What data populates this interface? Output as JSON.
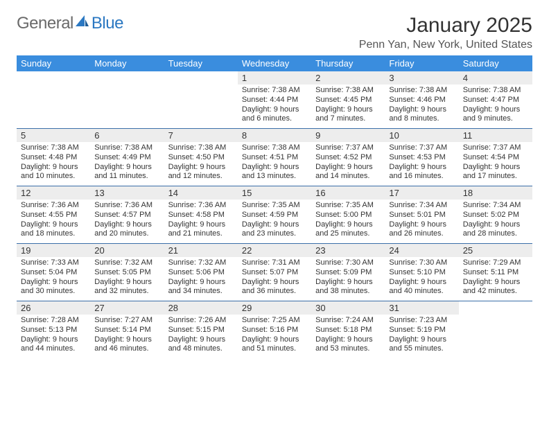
{
  "logo": {
    "text1": "General",
    "text2": "Blue"
  },
  "title": "January 2025",
  "subtitle": "Penn Yan, New York, United States",
  "colors": {
    "header_bg": "#3a8dde",
    "header_text": "#ffffff",
    "week_border": "#3a6ea8",
    "daynum_bg": "#ededed",
    "logo_gray": "#6a6a6a",
    "logo_blue": "#2b78c2",
    "page_bg": "#ffffff",
    "text": "#333333"
  },
  "columns": [
    "Sunday",
    "Monday",
    "Tuesday",
    "Wednesday",
    "Thursday",
    "Friday",
    "Saturday"
  ],
  "weeks": [
    [
      null,
      null,
      null,
      {
        "n": "1",
        "sr": "7:38 AM",
        "ss": "4:44 PM",
        "dl": "9 hours and 6 minutes."
      },
      {
        "n": "2",
        "sr": "7:38 AM",
        "ss": "4:45 PM",
        "dl": "9 hours and 7 minutes."
      },
      {
        "n": "3",
        "sr": "7:38 AM",
        "ss": "4:46 PM",
        "dl": "9 hours and 8 minutes."
      },
      {
        "n": "4",
        "sr": "7:38 AM",
        "ss": "4:47 PM",
        "dl": "9 hours and 9 minutes."
      }
    ],
    [
      {
        "n": "5",
        "sr": "7:38 AM",
        "ss": "4:48 PM",
        "dl": "9 hours and 10 minutes."
      },
      {
        "n": "6",
        "sr": "7:38 AM",
        "ss": "4:49 PM",
        "dl": "9 hours and 11 minutes."
      },
      {
        "n": "7",
        "sr": "7:38 AM",
        "ss": "4:50 PM",
        "dl": "9 hours and 12 minutes."
      },
      {
        "n": "8",
        "sr": "7:38 AM",
        "ss": "4:51 PM",
        "dl": "9 hours and 13 minutes."
      },
      {
        "n": "9",
        "sr": "7:37 AM",
        "ss": "4:52 PM",
        "dl": "9 hours and 14 minutes."
      },
      {
        "n": "10",
        "sr": "7:37 AM",
        "ss": "4:53 PM",
        "dl": "9 hours and 16 minutes."
      },
      {
        "n": "11",
        "sr": "7:37 AM",
        "ss": "4:54 PM",
        "dl": "9 hours and 17 minutes."
      }
    ],
    [
      {
        "n": "12",
        "sr": "7:36 AM",
        "ss": "4:55 PM",
        "dl": "9 hours and 18 minutes."
      },
      {
        "n": "13",
        "sr": "7:36 AM",
        "ss": "4:57 PM",
        "dl": "9 hours and 20 minutes."
      },
      {
        "n": "14",
        "sr": "7:36 AM",
        "ss": "4:58 PM",
        "dl": "9 hours and 21 minutes."
      },
      {
        "n": "15",
        "sr": "7:35 AM",
        "ss": "4:59 PM",
        "dl": "9 hours and 23 minutes."
      },
      {
        "n": "16",
        "sr": "7:35 AM",
        "ss": "5:00 PM",
        "dl": "9 hours and 25 minutes."
      },
      {
        "n": "17",
        "sr": "7:34 AM",
        "ss": "5:01 PM",
        "dl": "9 hours and 26 minutes."
      },
      {
        "n": "18",
        "sr": "7:34 AM",
        "ss": "5:02 PM",
        "dl": "9 hours and 28 minutes."
      }
    ],
    [
      {
        "n": "19",
        "sr": "7:33 AM",
        "ss": "5:04 PM",
        "dl": "9 hours and 30 minutes."
      },
      {
        "n": "20",
        "sr": "7:32 AM",
        "ss": "5:05 PM",
        "dl": "9 hours and 32 minutes."
      },
      {
        "n": "21",
        "sr": "7:32 AM",
        "ss": "5:06 PM",
        "dl": "9 hours and 34 minutes."
      },
      {
        "n": "22",
        "sr": "7:31 AM",
        "ss": "5:07 PM",
        "dl": "9 hours and 36 minutes."
      },
      {
        "n": "23",
        "sr": "7:30 AM",
        "ss": "5:09 PM",
        "dl": "9 hours and 38 minutes."
      },
      {
        "n": "24",
        "sr": "7:30 AM",
        "ss": "5:10 PM",
        "dl": "9 hours and 40 minutes."
      },
      {
        "n": "25",
        "sr": "7:29 AM",
        "ss": "5:11 PM",
        "dl": "9 hours and 42 minutes."
      }
    ],
    [
      {
        "n": "26",
        "sr": "7:28 AM",
        "ss": "5:13 PM",
        "dl": "9 hours and 44 minutes."
      },
      {
        "n": "27",
        "sr": "7:27 AM",
        "ss": "5:14 PM",
        "dl": "9 hours and 46 minutes."
      },
      {
        "n": "28",
        "sr": "7:26 AM",
        "ss": "5:15 PM",
        "dl": "9 hours and 48 minutes."
      },
      {
        "n": "29",
        "sr": "7:25 AM",
        "ss": "5:16 PM",
        "dl": "9 hours and 51 minutes."
      },
      {
        "n": "30",
        "sr": "7:24 AM",
        "ss": "5:18 PM",
        "dl": "9 hours and 53 minutes."
      },
      {
        "n": "31",
        "sr": "7:23 AM",
        "ss": "5:19 PM",
        "dl": "9 hours and 55 minutes."
      },
      null
    ]
  ],
  "labels": {
    "sunrise": "Sunrise:",
    "sunset": "Sunset:",
    "daylight": "Daylight:"
  }
}
